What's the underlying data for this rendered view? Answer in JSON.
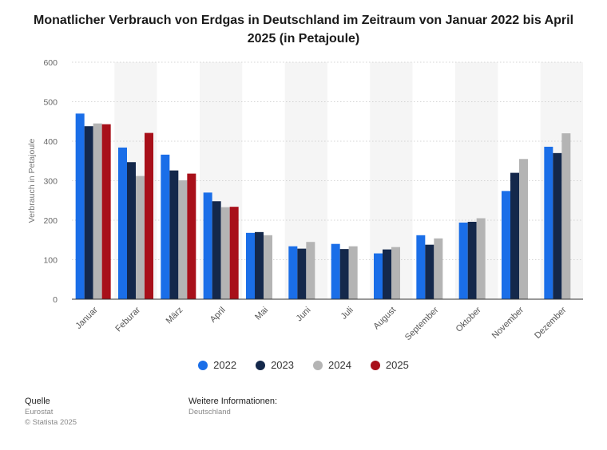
{
  "title": "Monatlicher Verbrauch von Erdgas in Deutschland im Zeitraum von Januar 2022 bis April 2025 (in Petajoule)",
  "chart_data": {
    "type": "bar",
    "ylabel": "Verbrauch in Petajoule",
    "ylim": [
      0,
      600
    ],
    "yticks": [
      "0",
      "100",
      "200",
      "300",
      "400",
      "500",
      "600"
    ],
    "grid": true,
    "legend_position": "bottom-center",
    "categories": [
      "Januar",
      "Feburar",
      "März",
      "April",
      "Mai",
      "Juni",
      "Juli",
      "August",
      "September",
      "Oktober",
      "November",
      "Dezember"
    ],
    "series": [
      {
        "name": "2022",
        "color": "#1a6ee8",
        "values": [
          470,
          384,
          366,
          270,
          168,
          134,
          140,
          116,
          162,
          194,
          274,
          386
        ]
      },
      {
        "name": "2023",
        "color": "#14284b",
        "values": [
          438,
          347,
          326,
          248,
          170,
          128,
          127,
          126,
          138,
          196,
          320,
          370
        ]
      },
      {
        "name": "2024",
        "color": "#b4b4b4",
        "values": [
          445,
          312,
          301,
          233,
          162,
          145,
          134,
          132,
          154,
          205,
          355,
          420
        ]
      },
      {
        "name": "2025",
        "color": "#a8101a",
        "values": [
          443,
          421,
          318,
          234,
          null,
          null,
          null,
          null,
          null,
          null,
          null,
          null
        ]
      }
    ]
  },
  "footer": {
    "source_heading": "Quelle",
    "source_name": "Eurostat",
    "copyright": "© Statista 2025",
    "info_heading": "Weitere Informationen:",
    "info_value": "Deutschland"
  }
}
